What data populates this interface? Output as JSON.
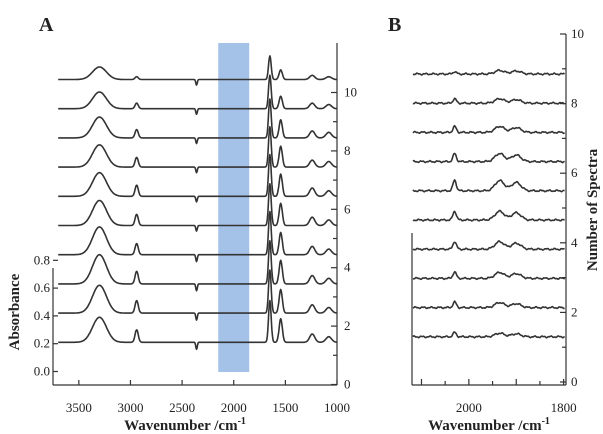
{
  "chart_data": [
    {
      "panel": "A",
      "type": "line",
      "xlabel": "Wavenumber /cm",
      "xlabel_superscript": "-1",
      "ylabel": "Absorbance",
      "right_axis_label": "",
      "x_direction": "reversed",
      "xlim": [
        3750,
        1000
      ],
      "x_ticks": [
        3500,
        3000,
        2500,
        2000,
        1500,
        1000
      ],
      "x_tick_labels": [
        "3500",
        "3000",
        "2500",
        "2000",
        "1500",
        "1000"
      ],
      "y_ticks": [
        0.0,
        0.2,
        0.4,
        0.6,
        0.8
      ],
      "y_tick_labels": [
        "0.0",
        "0.2",
        "0.4",
        "0.6",
        "0.8"
      ],
      "right_ticks": [
        0,
        2,
        4,
        6,
        8,
        10
      ],
      "right_tick_labels": [
        "0",
        "2",
        "4",
        "6",
        "8",
        "10"
      ],
      "spectrum_count": 10,
      "highlight": {
        "x_range": [
          2150,
          1850
        ],
        "color": "#a4c2e8"
      },
      "grid": false,
      "legend": "none",
      "series": [
        {
          "spectrum_number": 1,
          "peaks": [
            {
              "x": 3300,
              "height": 0.18
            },
            {
              "x": 2940,
              "height": 0.09
            },
            {
              "x": 2360,
              "height": -0.05
            },
            {
              "x": 1650,
              "height": 0.3
            },
            {
              "x": 1545,
              "height": 0.17
            },
            {
              "x": 1240,
              "height": 0.06
            },
            {
              "x": 1080,
              "height": 0.04
            }
          ]
        },
        {
          "spectrum_number": 2,
          "peaks": [
            {
              "x": 3300,
              "height": 0.2
            },
            {
              "x": 2940,
              "height": 0.09
            },
            {
              "x": 2360,
              "height": -0.05
            },
            {
              "x": 1650,
              "height": 0.31
            },
            {
              "x": 1545,
              "height": 0.17
            },
            {
              "x": 1240,
              "height": 0.06
            },
            {
              "x": 1080,
              "height": 0.04
            }
          ]
        },
        {
          "spectrum_number": 3,
          "peaks": [
            {
              "x": 3300,
              "height": 0.21
            },
            {
              "x": 2940,
              "height": 0.09
            },
            {
              "x": 2360,
              "height": -0.05
            },
            {
              "x": 1650,
              "height": 0.31
            },
            {
              "x": 1545,
              "height": 0.17
            },
            {
              "x": 1240,
              "height": 0.06
            },
            {
              "x": 1080,
              "height": 0.04
            }
          ]
        },
        {
          "spectrum_number": 4,
          "peaks": [
            {
              "x": 3300,
              "height": 0.2
            },
            {
              "x": 2940,
              "height": 0.08
            },
            {
              "x": 2360,
              "height": -0.05
            },
            {
              "x": 1650,
              "height": 0.31
            },
            {
              "x": 1545,
              "height": 0.16
            },
            {
              "x": 1240,
              "height": 0.06
            },
            {
              "x": 1080,
              "height": 0.04
            }
          ]
        },
        {
          "spectrum_number": 5,
          "peaks": [
            {
              "x": 3300,
              "height": 0.18
            },
            {
              "x": 2940,
              "height": 0.08
            },
            {
              "x": 2360,
              "height": -0.04
            },
            {
              "x": 1650,
              "height": 0.3
            },
            {
              "x": 1545,
              "height": 0.16
            },
            {
              "x": 1240,
              "height": 0.06
            },
            {
              "x": 1080,
              "height": 0.04
            }
          ]
        },
        {
          "spectrum_number": 6,
          "peaks": [
            {
              "x": 3300,
              "height": 0.17
            },
            {
              "x": 2940,
              "height": 0.08
            },
            {
              "x": 2360,
              "height": -0.04
            },
            {
              "x": 1650,
              "height": 0.3
            },
            {
              "x": 1545,
              "height": 0.16
            },
            {
              "x": 1240,
              "height": 0.06
            },
            {
              "x": 1080,
              "height": 0.04
            }
          ]
        },
        {
          "spectrum_number": 7,
          "peaks": [
            {
              "x": 3300,
              "height": 0.16
            },
            {
              "x": 2940,
              "height": 0.07
            },
            {
              "x": 2360,
              "height": -0.04
            },
            {
              "x": 1650,
              "height": 0.29
            },
            {
              "x": 1545,
              "height": 0.15
            },
            {
              "x": 1240,
              "height": 0.05
            },
            {
              "x": 1080,
              "height": 0.04
            }
          ]
        },
        {
          "spectrum_number": 8,
          "peaks": [
            {
              "x": 3300,
              "height": 0.15
            },
            {
              "x": 2940,
              "height": 0.06
            },
            {
              "x": 2360,
              "height": -0.04
            },
            {
              "x": 1650,
              "height": 0.28
            },
            {
              "x": 1545,
              "height": 0.13
            },
            {
              "x": 1240,
              "height": 0.05
            },
            {
              "x": 1080,
              "height": 0.04
            }
          ]
        },
        {
          "spectrum_number": 9,
          "peaks": [
            {
              "x": 3300,
              "height": 0.12
            },
            {
              "x": 2940,
              "height": 0.04
            },
            {
              "x": 2360,
              "height": -0.04
            },
            {
              "x": 1650,
              "height": 0.24
            },
            {
              "x": 1545,
              "height": 0.09
            },
            {
              "x": 1240,
              "height": 0.04
            },
            {
              "x": 1080,
              "height": 0.03
            }
          ]
        },
        {
          "spectrum_number": 10,
          "peaks": [
            {
              "x": 3300,
              "height": 0.09
            },
            {
              "x": 2940,
              "height": 0.02
            },
            {
              "x": 2360,
              "height": -0.04
            },
            {
              "x": 1650,
              "height": 0.17
            },
            {
              "x": 1545,
              "height": 0.07
            },
            {
              "x": 1240,
              "height": 0.03
            },
            {
              "x": 1080,
              "height": 0.02
            }
          ]
        }
      ]
    },
    {
      "panel": "B",
      "type": "line",
      "xlabel": "Wavenumber /cm",
      "xlabel_superscript": "-1",
      "ylabel": "Number of Spectra",
      "x_direction": "reversed",
      "xlim": [
        2120,
        1795
      ],
      "x_ticks": [
        2000,
        1800
      ],
      "x_tick_labels": [
        "2000",
        "1800"
      ],
      "right_ticks": [
        0,
        2,
        4,
        6,
        8,
        10
      ],
      "right_tick_labels": [
        "0",
        "2",
        "4",
        "6",
        "8",
        "10"
      ],
      "spectrum_count": 10,
      "grid": false,
      "legend": "none",
      "series": [
        {
          "spectrum_number": 1,
          "peaks": [
            {
              "x": 2030,
              "height": 0.15
            },
            {
              "x": 1935,
              "height": 0.12
            },
            {
              "x": 1900,
              "height": 0.1
            }
          ]
        },
        {
          "spectrum_number": 2,
          "peaks": [
            {
              "x": 2030,
              "height": 0.19
            },
            {
              "x": 1935,
              "height": 0.17
            },
            {
              "x": 1900,
              "height": 0.13
            }
          ]
        },
        {
          "spectrum_number": 3,
          "peaks": [
            {
              "x": 2030,
              "height": 0.22
            },
            {
              "x": 1935,
              "height": 0.2
            },
            {
              "x": 1900,
              "height": 0.16
            }
          ]
        },
        {
          "spectrum_number": 4,
          "peaks": [
            {
              "x": 2030,
              "height": 0.26
            },
            {
              "x": 1935,
              "height": 0.25
            },
            {
              "x": 1900,
              "height": 0.2
            }
          ]
        },
        {
          "spectrum_number": 5,
          "peaks": [
            {
              "x": 2030,
              "height": 0.3
            },
            {
              "x": 1935,
              "height": 0.29
            },
            {
              "x": 1900,
              "height": 0.24
            }
          ]
        },
        {
          "spectrum_number": 6,
          "peaks": [
            {
              "x": 2030,
              "height": 0.36
            },
            {
              "x": 1935,
              "height": 0.34
            },
            {
              "x": 1900,
              "height": 0.28
            }
          ]
        },
        {
          "spectrum_number": 7,
          "peaks": [
            {
              "x": 2030,
              "height": 0.27
            },
            {
              "x": 1935,
              "height": 0.27
            },
            {
              "x": 1900,
              "height": 0.22
            }
          ]
        },
        {
          "spectrum_number": 8,
          "peaks": [
            {
              "x": 2030,
              "height": 0.2
            },
            {
              "x": 1935,
              "height": 0.2
            },
            {
              "x": 1900,
              "height": 0.16
            }
          ]
        },
        {
          "spectrum_number": 9,
          "peaks": [
            {
              "x": 2030,
              "height": 0.15
            },
            {
              "x": 1935,
              "height": 0.15
            },
            {
              "x": 1900,
              "height": 0.12
            }
          ]
        },
        {
          "spectrum_number": 10,
          "peaks": [
            {
              "x": 2030,
              "height": 0.08
            },
            {
              "x": 1935,
              "height": 0.12
            },
            {
              "x": 1900,
              "height": 0.1
            }
          ]
        }
      ]
    }
  ],
  "panels": {
    "a_label": "A",
    "b_label": "B"
  }
}
